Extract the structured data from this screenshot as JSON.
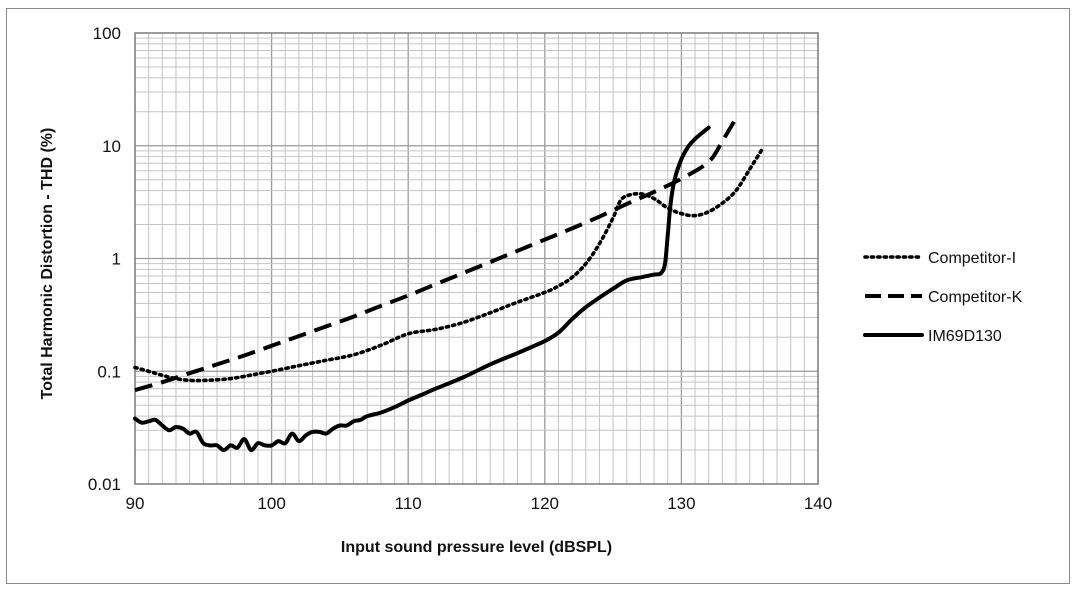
{
  "chart_data": {
    "type": "line",
    "title": "",
    "xlabel": "Input sound pressure level (dBSPL)",
    "ylabel": "Total Harmonic Distortion - THD (%)",
    "xlim": [
      90,
      140
    ],
    "ylim": [
      0.01,
      100
    ],
    "yscale": "log",
    "grid": true,
    "legend_position": "right",
    "x_ticks": [
      90,
      100,
      110,
      120,
      130,
      140
    ],
    "x_tick_labels": [
      "90",
      "100",
      "110",
      "120",
      "130",
      "140"
    ],
    "y_ticks": [
      0.01,
      0.1,
      1,
      10,
      100
    ],
    "y_tick_labels": [
      "0.01",
      "0.1",
      "1",
      "10",
      "100"
    ],
    "series": [
      {
        "name": "Competitor-I",
        "style": "dotted",
        "x": [
          90,
          91,
          92,
          93,
          94,
          95,
          96,
          97,
          98,
          99,
          100,
          102,
          104,
          106,
          108,
          110,
          112,
          114,
          116,
          118,
          120,
          121,
          122,
          123,
          124,
          125,
          125.5,
          126,
          127,
          128,
          129,
          130,
          131,
          132,
          133,
          134,
          135,
          136
        ],
        "y": [
          0.108,
          0.1,
          0.092,
          0.086,
          0.083,
          0.083,
          0.084,
          0.086,
          0.09,
          0.095,
          0.1,
          0.112,
          0.125,
          0.14,
          0.17,
          0.215,
          0.235,
          0.27,
          0.33,
          0.41,
          0.5,
          0.57,
          0.68,
          0.9,
          1.35,
          2.3,
          3.2,
          3.6,
          3.75,
          3.4,
          2.8,
          2.5,
          2.4,
          2.6,
          3.1,
          4.0,
          6.2,
          9.7
        ]
      },
      {
        "name": "Competitor-K",
        "style": "dashed",
        "x": [
          90,
          92,
          94,
          96,
          98,
          100,
          102,
          104,
          106,
          108,
          110,
          112,
          114,
          116,
          118,
          120,
          122,
          124,
          126,
          128,
          130,
          132,
          133,
          134
        ],
        "y": [
          0.068,
          0.08,
          0.096,
          0.115,
          0.138,
          0.168,
          0.205,
          0.25,
          0.305,
          0.38,
          0.47,
          0.59,
          0.74,
          0.93,
          1.17,
          1.47,
          1.85,
          2.35,
          3.05,
          3.9,
          5.1,
          7.2,
          11.0,
          17.5
        ]
      },
      {
        "name": "IM69D130",
        "style": "solid",
        "x": [
          90,
          90.5,
          91,
          91.5,
          92,
          92.5,
          93,
          93.5,
          94,
          94.5,
          95,
          95.5,
          96,
          96.5,
          97,
          97.5,
          98,
          98.5,
          99,
          99.5,
          100,
          100.5,
          101,
          101.5,
          102,
          102.5,
          103,
          103.5,
          104,
          104.5,
          105,
          105.5,
          106,
          106.5,
          107,
          108,
          109,
          110,
          111,
          112,
          114,
          116,
          118,
          120,
          121,
          122,
          123,
          124,
          125,
          126,
          127,
          128,
          128.5,
          128.8,
          129,
          129.2,
          129.5,
          130,
          130.5,
          131,
          132
        ],
        "y": [
          0.038,
          0.035,
          0.036,
          0.037,
          0.033,
          0.03,
          0.032,
          0.031,
          0.028,
          0.029,
          0.023,
          0.022,
          0.022,
          0.02,
          0.022,
          0.021,
          0.025,
          0.02,
          0.023,
          0.022,
          0.022,
          0.024,
          0.023,
          0.028,
          0.024,
          0.027,
          0.029,
          0.029,
          0.028,
          0.031,
          0.033,
          0.033,
          0.036,
          0.037,
          0.04,
          0.043,
          0.048,
          0.055,
          0.062,
          0.07,
          0.088,
          0.115,
          0.145,
          0.185,
          0.22,
          0.29,
          0.37,
          0.45,
          0.54,
          0.64,
          0.68,
          0.72,
          0.74,
          0.9,
          1.6,
          3.0,
          5.0,
          7.6,
          9.8,
          11.5,
          14.5
        ]
      }
    ]
  }
}
